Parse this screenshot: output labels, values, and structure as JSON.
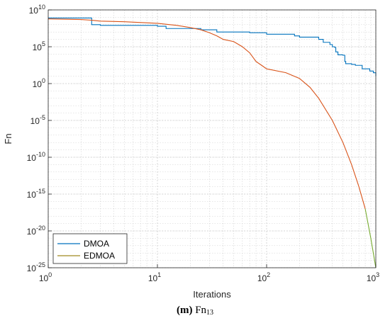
{
  "chart_data": {
    "type": "line",
    "xscale": "log",
    "yscale": "log",
    "xlabel": "Iterations",
    "ylabel": "Fn",
    "xlim": [
      1,
      1000
    ],
    "ylim": [
      1e-25,
      10000000000.0
    ],
    "grid": true,
    "legend_position": "bottom-left",
    "x_ticks": [
      {
        "value": 1,
        "base": "10",
        "exp": "0"
      },
      {
        "value": 10,
        "base": "10",
        "exp": "1"
      },
      {
        "value": 100,
        "base": "10",
        "exp": "2"
      },
      {
        "value": 1000,
        "base": "10",
        "exp": "3"
      }
    ],
    "y_ticks": [
      {
        "value": 1e-25,
        "base": "10",
        "exp": "-25"
      },
      {
        "value": 1e-20,
        "base": "10",
        "exp": "-20"
      },
      {
        "value": 1e-15,
        "base": "10",
        "exp": "-15"
      },
      {
        "value": 1e-10,
        "base": "10",
        "exp": "-10"
      },
      {
        "value": 1e-05,
        "base": "10",
        "exp": "-5"
      },
      {
        "value": 1,
        "base": "10",
        "exp": "0"
      },
      {
        "value": 100000.0,
        "base": "10",
        "exp": "5"
      },
      {
        "value": 10000000000.0,
        "base": "10",
        "exp": "10"
      }
    ],
    "series": [
      {
        "name": "DMOA",
        "color": "#0072BD",
        "step": true,
        "x": [
          1,
          2,
          2.5,
          3,
          5,
          8,
          10,
          12,
          15,
          25,
          35,
          50,
          70,
          100,
          120,
          180,
          200,
          300,
          330,
          380,
          400,
          420,
          430,
          450,
          500,
          520,
          530,
          600,
          650,
          750,
          820,
          880,
          950,
          1000
        ],
        "y": [
          800000000.0,
          800000000.0,
          100000000.0,
          80000000.0,
          80000000.0,
          80000000.0,
          60000000.0,
          30000000.0,
          30000000.0,
          20000000.0,
          10000000.0,
          10000000.0,
          8000000.0,
          5000000.0,
          5000000.0,
          3000000.0,
          2000000.0,
          1000000.0,
          400000.0,
          200000.0,
          100000.0,
          80000.0,
          20000.0,
          8000.0,
          7000.0,
          1000.0,
          500.0,
          400.0,
          300.0,
          100.0,
          100.0,
          50.0,
          30.0,
          10.0
        ]
      },
      {
        "name": "EDMOA",
        "color": "#D95319",
        "color_tail": "#77AC30",
        "x": [
          1,
          2,
          2.5,
          3,
          5,
          10,
          15,
          20,
          25,
          30,
          35,
          40,
          50,
          60,
          70,
          80,
          90,
          100,
          150,
          200,
          250,
          300,
          400,
          500,
          600,
          700,
          800,
          900,
          1000
        ],
        "y": [
          600000000.0,
          500000000.0,
          400000000.0,
          300000000.0,
          250000000.0,
          150000000.0,
          80000000.0,
          40000000.0,
          20000000.0,
          8000000.0,
          3000000.0,
          1000000.0,
          500000.0,
          100000.0,
          15000.0,
          1000.0,
          300.0,
          100.0,
          30.0,
          5,
          0.3,
          0.01,
          1e-05,
          1e-08,
          1e-11,
          1e-14,
          1e-17,
          1e-21,
          1e-25
        ]
      }
    ]
  },
  "caption": {
    "letter": "(m)",
    "text": "Fn",
    "subscript": "13"
  }
}
